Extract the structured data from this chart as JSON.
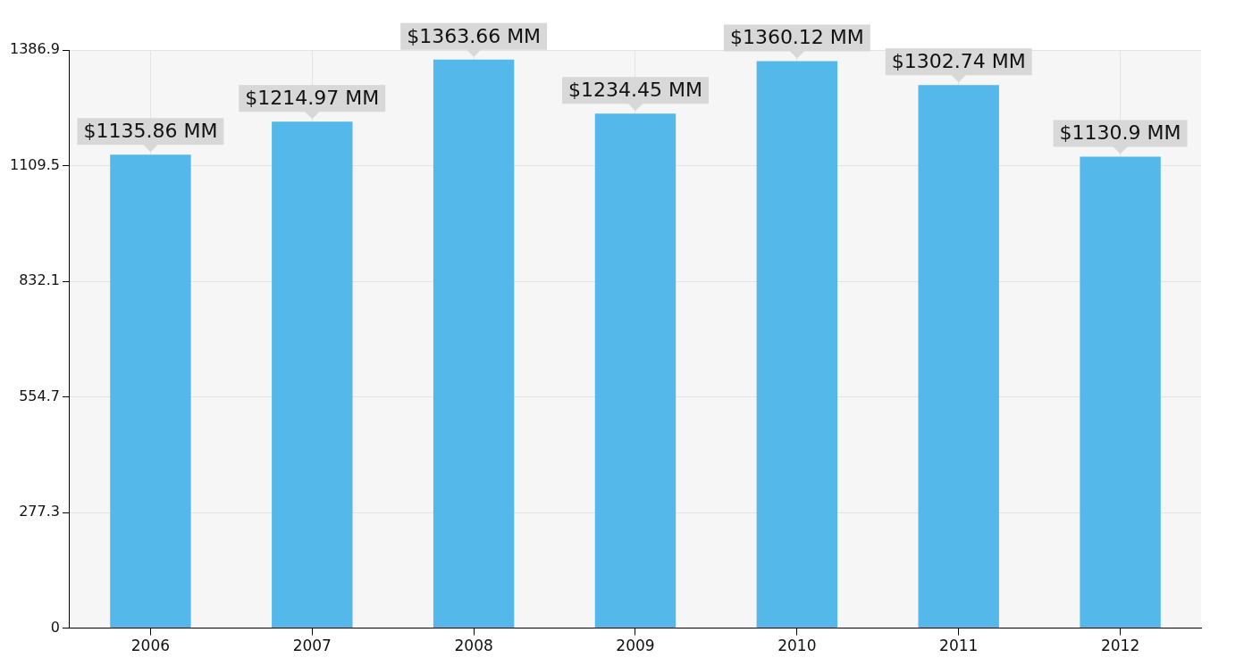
{
  "chart_data": {
    "type": "bar",
    "categories": [
      "2006",
      "2007",
      "2008",
      "2009",
      "2010",
      "2011",
      "2012"
    ],
    "values": [
      1135.86,
      1214.97,
      1363.66,
      1234.45,
      1360.12,
      1302.74,
      1130.9
    ],
    "value_labels": [
      "$1135.86 MM",
      "$1214.97 MM",
      "$1363.66 MM",
      "$1234.45 MM",
      "$1360.12 MM",
      "$1302.74 MM",
      "$1130.9 MM"
    ],
    "color": "#55b8ea",
    "ylim": [
      0,
      1386.9
    ],
    "yticks": [
      0,
      277.3,
      554.7,
      832.1,
      1109.5,
      1386.9
    ],
    "grid": true,
    "legend": false
  }
}
